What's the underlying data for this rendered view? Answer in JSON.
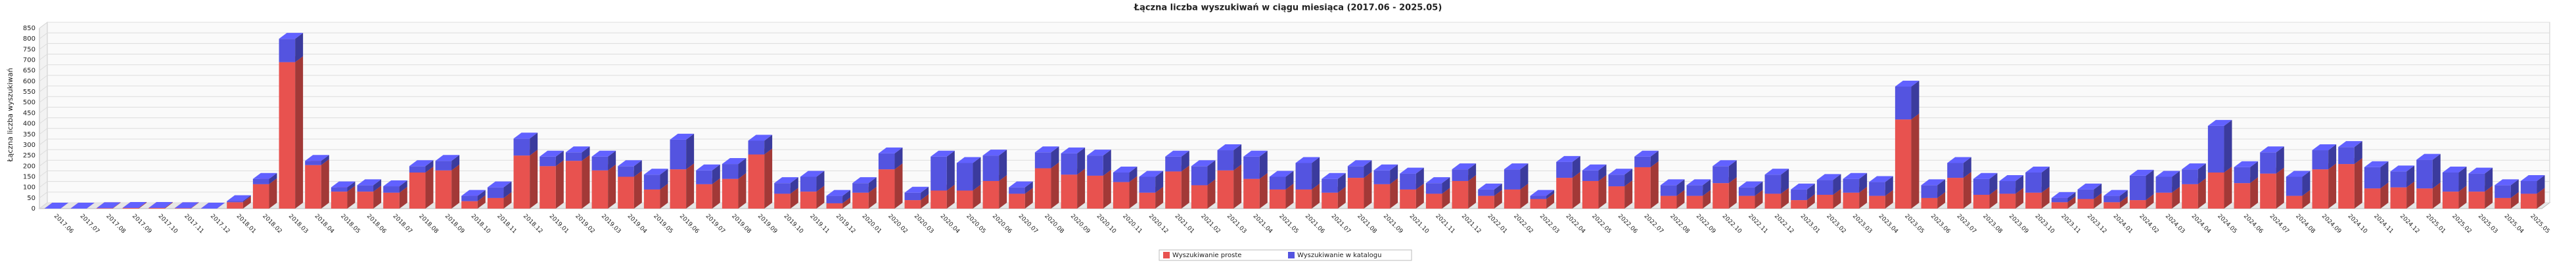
{
  "chart_data": {
    "type": "stacked_bar_3d",
    "title": "Łączna liczba wyszukiwań w ciągu miesiąca (2017.06 - 2025.05)",
    "y_label": "Łączna liczba wyszukiwań",
    "categories": [
      "2017.06",
      "2017.07",
      "2017.08",
      "2017.09",
      "2017.10",
      "2017.11",
      "2017.12",
      "2018.01",
      "2018.02",
      "2018.03",
      "2018.04",
      "2018.05",
      "2018.06",
      "2018.07",
      "2018.08",
      "2018.09",
      "2018.10",
      "2018.11",
      "2018.12",
      "2019.01",
      "2019.02",
      "2019.03",
      "2019.04",
      "2019.05",
      "2019.06",
      "2019.07",
      "2019.08",
      "2019.09",
      "2019.10",
      "2019.11",
      "2019.12",
      "2020.01",
      "2020.02",
      "2020.03",
      "2020.04",
      "2020.05",
      "2020.06",
      "2020.07",
      "2020.08",
      "2020.09",
      "2020.10",
      "2020.11",
      "2020.12",
      "2021.01",
      "2021.02",
      "2021.03",
      "2021.04",
      "2021.05",
      "2021.06",
      "2021.07",
      "2021.08",
      "2021.09",
      "2021.10",
      "2021.11",
      "2021.12",
      "2022.01",
      "2022.02",
      "2022.03",
      "2022.04",
      "2022.05",
      "2022.06",
      "2022.07",
      "2022.08",
      "2022.09",
      "2022.10",
      "2022.11",
      "2022.12",
      "2023.01",
      "2023.02",
      "2023.03",
      "2023.04",
      "2023.05",
      "2023.06",
      "2023.07",
      "2023.08",
      "2023.09",
      "2023.10",
      "2023.11",
      "2023.12",
      "2024.01",
      "2024.02",
      "2024.03",
      "2024.04",
      "2024.05",
      "2024.06",
      "2024.07",
      "2024.08",
      "2024.09",
      "2024.10",
      "2024.11",
      "2024.12",
      "2025.01",
      "2025.02",
      "2025.03",
      "2025.04",
      "2025.05"
    ],
    "series": [
      {
        "name": "Wyszukiwanie proste",
        "color": "#e8524f",
        "values": [
          0,
          0,
          2,
          3,
          3,
          2,
          0,
          30,
          115,
          690,
          205,
          80,
          80,
          75,
          170,
          180,
          35,
          50,
          250,
          200,
          225,
          180,
          150,
          90,
          185,
          115,
          140,
          255,
          70,
          80,
          25,
          75,
          185,
          40,
          85,
          85,
          130,
          70,
          190,
          160,
          155,
          125,
          75,
          175,
          110,
          180,
          140,
          90,
          90,
          75,
          145,
          115,
          90,
          70,
          130,
          60,
          90,
          45,
          145,
          130,
          105,
          195,
          60,
          60,
          120,
          60,
          70,
          40,
          65,
          75,
          60,
          420,
          50,
          145,
          65,
          70,
          75,
          30,
          45,
          30,
          40,
          75,
          115,
          170,
          120,
          165,
          60,
          185,
          210,
          95,
          100,
          95,
          80,
          80,
          50,
          70
        ]
      },
      {
        "name": "Wyszukiwanie w katalogu",
        "color": "#5454e0",
        "values": [
          0,
          0,
          0,
          0,
          0,
          0,
          0,
          5,
          25,
          110,
          20,
          20,
          30,
          30,
          30,
          45,
          25,
          50,
          80,
          45,
          40,
          65,
          50,
          70,
          140,
          65,
          70,
          65,
          50,
          70,
          35,
          45,
          75,
          35,
          160,
          130,
          120,
          30,
          75,
          100,
          95,
          45,
          75,
          70,
          90,
          95,
          105,
          60,
          125,
          65,
          55,
          65,
          75,
          50,
          55,
          30,
          95,
          15,
          75,
          50,
          55,
          50,
          50,
          50,
          80,
          40,
          90,
          50,
          70,
          65,
          65,
          155,
          60,
          70,
          75,
          60,
          95,
          20,
          45,
          30,
          115,
          75,
          70,
          220,
          75,
          100,
          90,
          90,
          80,
          100,
          75,
          135,
          90,
          85,
          60,
          60
        ]
      }
    ],
    "ylim": [
      0,
      850
    ],
    "yticks": [
      0,
      50,
      100,
      150,
      200,
      250,
      300,
      350,
      400,
      450,
      500,
      550,
      600,
      650,
      700,
      750,
      800,
      850
    ],
    "grid": true
  }
}
